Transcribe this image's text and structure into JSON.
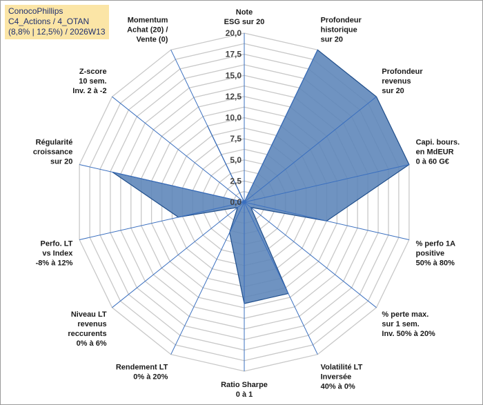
{
  "title": {
    "line1": "ConocoPhillips",
    "line2": "C4_Actions / 4_OTAN",
    "line3": "(8,8% | 12,5%) / 2026W13"
  },
  "chart_data": {
    "type": "radar",
    "r_range": [
      0,
      20
    ],
    "r_ticks": [
      "0,0",
      "2,5",
      "5,0",
      "7,5",
      "10,0",
      "12,5",
      "15,0",
      "17,5",
      "20,0"
    ],
    "rings": 16,
    "grid": true,
    "fill_color": "#5b84b8",
    "line_color": "#1f4e8c",
    "grid_color": "#c8c8c8",
    "axis_color": "#3a6fbf",
    "axes": [
      {
        "label": [
          "Note",
          "ESG sur 20"
        ],
        "value": 0
      },
      {
        "label": [
          "Profondeur",
          "historique",
          "sur 20"
        ],
        "value": 20
      },
      {
        "label": [
          "Profondeur",
          "revenus",
          "sur 20"
        ],
        "value": 20
      },
      {
        "label": [
          "Capi. bours.",
          "en MdEUR",
          "0 à 60 G€"
        ],
        "value": 20
      },
      {
        "label": [
          "% perfo 1A",
          "positive",
          "50% à 80%"
        ],
        "value": 10
      },
      {
        "label": [
          "% perte max.",
          "sur 1 sem.",
          "Inv. 50% à 20%"
        ],
        "value": 1
      },
      {
        "label": [
          "Volatilité LT",
          "Inversée",
          "40% à 0%"
        ],
        "value": 12
      },
      {
        "label": [
          "Ratio Sharpe",
          "0 à 1"
        ],
        "value": 12
      },
      {
        "label": [
          "Rendement LT",
          "0% à 20%"
        ],
        "value": 4
      },
      {
        "label": [
          "Niveau LT",
          "revenus",
          "reccurents",
          "0% à 6%"
        ],
        "value": 1
      },
      {
        "label": [
          "Perfo. LT",
          "vs Index",
          "-8% à 12%"
        ],
        "value": 8
      },
      {
        "label": [
          "Régularité",
          "croissance",
          "sur 20"
        ],
        "value": 16
      },
      {
        "label": [
          "Z-score",
          "10 sem.",
          "Inv. 2 à -2"
        ],
        "value": 0
      },
      {
        "label": [
          "Momentum",
          "Achat (20) /",
          "Vente (0)"
        ],
        "value": 10
      }
    ]
  }
}
